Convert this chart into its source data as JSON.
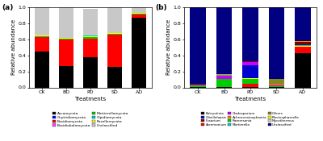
{
  "panel_a": {
    "categories": [
      "CK",
      "BD",
      "PD",
      "SD",
      "AD"
    ],
    "series_order": [
      "Ascomycota",
      "Basidiomycota",
      "Mortierellomycota",
      "Rozellomycota",
      "Chytridiomycota",
      "Basidiobolomycota",
      "Olpidiomycota",
      "Unclassified"
    ],
    "series": {
      "Ascomycota": [
        0.45,
        0.27,
        0.38,
        0.26,
        0.87
      ],
      "Basidiomycota": [
        0.175,
        0.33,
        0.225,
        0.395,
        0.04
      ],
      "Mortierellomycota": [
        0.01,
        0.01,
        0.025,
        0.01,
        0.01
      ],
      "Rozellomycota": [
        0.008,
        0.008,
        0.004,
        0.008,
        0.004
      ],
      "Chytridiomycota": [
        0.001,
        0.001,
        0.001,
        0.001,
        0.001
      ],
      "Basidiobolomycota": [
        0.001,
        0.001,
        0.001,
        0.001,
        0.001
      ],
      "Olpidiomycota": [
        0.001,
        0.001,
        0.006,
        0.001,
        0.001
      ],
      "Unclassified": [
        0.354,
        0.379,
        0.338,
        0.324,
        0.073
      ]
    },
    "colors": {
      "Ascomycota": "#000000",
      "Basidiomycota": "#ff0000",
      "Mortierellomycota": "#00cc00",
      "Rozellomycota": "#ffff00",
      "Chytridiomycota": "#0000ff",
      "Basidiobolomycota": "#ff44ff",
      "Olpidiomycota": "#00cccc",
      "Unclassified": "#c8c8c8"
    },
    "ylabel": "Relative abundance",
    "xlabel": "Treatments",
    "ylim": [
      0,
      1.0
    ],
    "label": "(a)",
    "legend": [
      {
        "name": "Ascomycota",
        "color": "#000000"
      },
      {
        "name": "Chytridiomycota",
        "color": "#0000ff"
      },
      {
        "name": "Basidiomycota",
        "color": "#ff0000"
      },
      {
        "name": "Basidiobolomycota",
        "color": "#ff44ff"
      },
      {
        "name": "Mortierellomycota",
        "color": "#00cc00"
      },
      {
        "name": "Olpidiomycota",
        "color": "#00cccc"
      },
      {
        "name": "Rozellomycota",
        "color": "#ffff00"
      },
      {
        "name": "Unclassified",
        "color": "#c8c8c8"
      }
    ]
  },
  "panel_b": {
    "categories": [
      "CK",
      "BD",
      "PD",
      "SD",
      "AD"
    ],
    "series_order": [
      "Botryotinia",
      "Acremonium",
      "Ramersonia",
      "Plectosphaerella",
      "Gibellulopsis",
      "Cladosporium",
      "Mortierella",
      "Mycothermus",
      "Fusarium",
      "Achroceratosphaeria",
      "Others",
      "Unclassified"
    ],
    "series": {
      "Botryotinia": [
        0.004,
        0.004,
        0.004,
        0.004,
        0.43
      ],
      "Acremonium": [
        0.004,
        0.004,
        0.04,
        0.004,
        0.075
      ],
      "Ramersonia": [
        0.015,
        0.095,
        0.065,
        0.004,
        0.005
      ],
      "Plectosphaerella": [
        0.003,
        0.003,
        0.003,
        0.003,
        0.003
      ],
      "Gibellulopsis": [
        0.003,
        0.003,
        0.16,
        0.003,
        0.003
      ],
      "Cladosporium": [
        0.003,
        0.04,
        0.04,
        0.003,
        0.003
      ],
      "Mortierella": [
        0.003,
        0.003,
        0.003,
        0.003,
        0.003
      ],
      "Mycothermus": [
        0.003,
        0.003,
        0.003,
        0.003,
        0.003
      ],
      "Fusarium": [
        0.003,
        0.003,
        0.003,
        0.003,
        0.04
      ],
      "Achroceratosphaeria": [
        0.003,
        0.003,
        0.003,
        0.003,
        0.008
      ],
      "Others": [
        0.003,
        0.003,
        0.003,
        0.075,
        0.003
      ],
      "Unclassified": [
        0.951,
        0.836,
        0.673,
        0.895,
        0.424
      ]
    },
    "colors": {
      "Botryotinia": "#000000",
      "Acremonium": "#ff0000",
      "Ramersonia": "#00cc00",
      "Plectosphaerella": "#ffff00",
      "Gibellulopsis": "#0000cc",
      "Cladosporium": "#cc00ff",
      "Mortierella": "#00cccc",
      "Mycothermus": "#d8d8b0",
      "Fusarium": "#800000",
      "Achroceratosphaeria": "#ff8800",
      "Others": "#888820",
      "Unclassified": "#000080"
    },
    "ylabel": "Relative abundance",
    "xlabel": "Treatments",
    "ylim": [
      0,
      1.0
    ],
    "label": "(b)",
    "legend": [
      {
        "name": "Botryotinia",
        "color": "#000000"
      },
      {
        "name": "Gibellulopsis",
        "color": "#0000cc"
      },
      {
        "name": "Fusarium",
        "color": "#800000"
      },
      {
        "name": "Acremonium",
        "color": "#ff0000"
      },
      {
        "name": "Cladosporium",
        "color": "#cc00ff"
      },
      {
        "name": "Achroceratosphaeria",
        "color": "#ff8800"
      },
      {
        "name": "Ramersonia",
        "color": "#00cc00"
      },
      {
        "name": "Mortierella",
        "color": "#00cccc"
      },
      {
        "name": "Others",
        "color": "#888820"
      },
      {
        "name": "Plectosphaerella",
        "color": "#ffff00"
      },
      {
        "name": "Mycothermus",
        "color": "#d8d8b0"
      },
      {
        "name": "Unclassified",
        "color": "#000080"
      }
    ]
  },
  "fig_width": 4.0,
  "fig_height": 1.75,
  "dpi": 100
}
